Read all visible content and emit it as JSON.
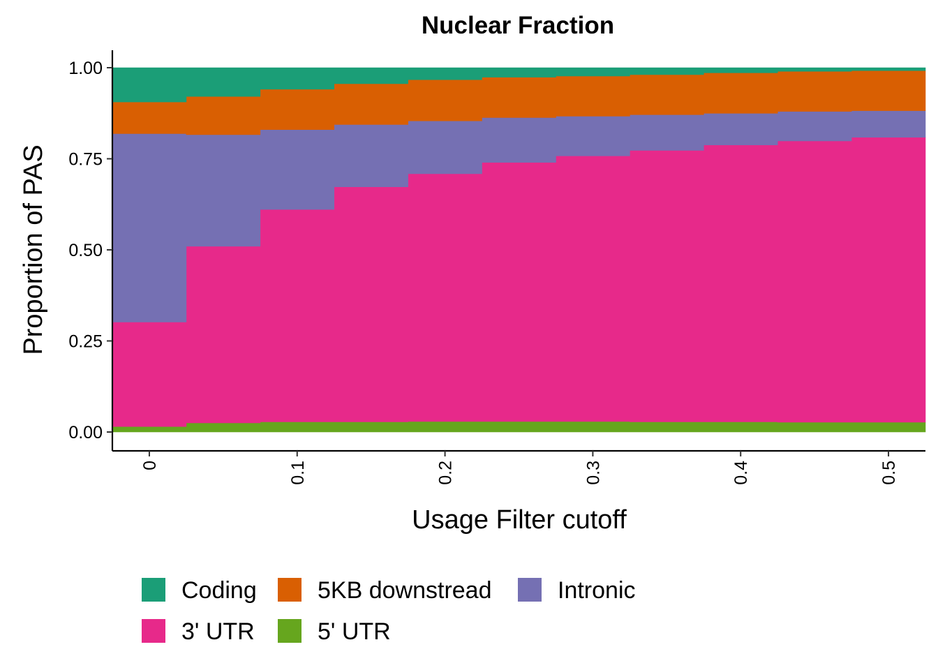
{
  "chart_data": {
    "type": "area",
    "title": "Nuclear Fraction",
    "xlabel": "Usage Filter cutoff",
    "ylabel": "Proportion of PAS",
    "xlim": [
      -0.025,
      0.525
    ],
    "ylim": [
      0,
      1
    ],
    "x_ticks": [
      "0",
      "0.1",
      "0.2",
      "0.3",
      "0.4",
      "0.5"
    ],
    "x_tick_values": [
      0,
      0.1,
      0.2,
      0.3,
      0.4,
      0.5
    ],
    "y_ticks": [
      "0.00",
      "0.25",
      "0.50",
      "0.75",
      "1.00"
    ],
    "y_tick_values": [
      0,
      0.25,
      0.5,
      0.75,
      1.0
    ],
    "x": [
      0,
      0.05,
      0.1,
      0.15,
      0.2,
      0.25,
      0.3,
      0.35,
      0.4,
      0.45,
      0.5
    ],
    "stack_order": [
      "5' UTR",
      "3' UTR",
      "Intronic",
      "5KB downstread",
      "Coding"
    ],
    "series": [
      {
        "name": "5' UTR",
        "color": "#66A61E",
        "values": [
          0.015,
          0.025,
          0.028,
          0.028,
          0.029,
          0.029,
          0.029,
          0.028,
          0.028,
          0.027,
          0.027
        ]
      },
      {
        "name": "3' UTR",
        "color": "#E7298A",
        "values": [
          0.287,
          0.485,
          0.583,
          0.645,
          0.68,
          0.711,
          0.729,
          0.745,
          0.76,
          0.772,
          0.782
        ]
      },
      {
        "name": "Intronic",
        "color": "#7570B3",
        "values": [
          0.517,
          0.306,
          0.219,
          0.171,
          0.145,
          0.123,
          0.109,
          0.098,
          0.087,
          0.081,
          0.073
        ]
      },
      {
        "name": "5KB downstread",
        "color": "#D95F02",
        "values": [
          0.087,
          0.105,
          0.111,
          0.112,
          0.113,
          0.111,
          0.11,
          0.11,
          0.111,
          0.11,
          0.11
        ]
      },
      {
        "name": "Coding",
        "color": "#1B9E77",
        "values": [
          0.094,
          0.079,
          0.059,
          0.044,
          0.033,
          0.026,
          0.023,
          0.019,
          0.014,
          0.01,
          0.008
        ]
      }
    ],
    "legend": {
      "position": "bottom",
      "items": [
        {
          "label": "Coding",
          "color": "#1B9E77"
        },
        {
          "label": "5KB downstread",
          "color": "#D95F02"
        },
        {
          "label": "Intronic",
          "color": "#7570B3"
        },
        {
          "label": "3' UTR",
          "color": "#E7298A"
        },
        {
          "label": "5' UTR",
          "color": "#66A61E"
        }
      ]
    },
    "grid": false
  }
}
